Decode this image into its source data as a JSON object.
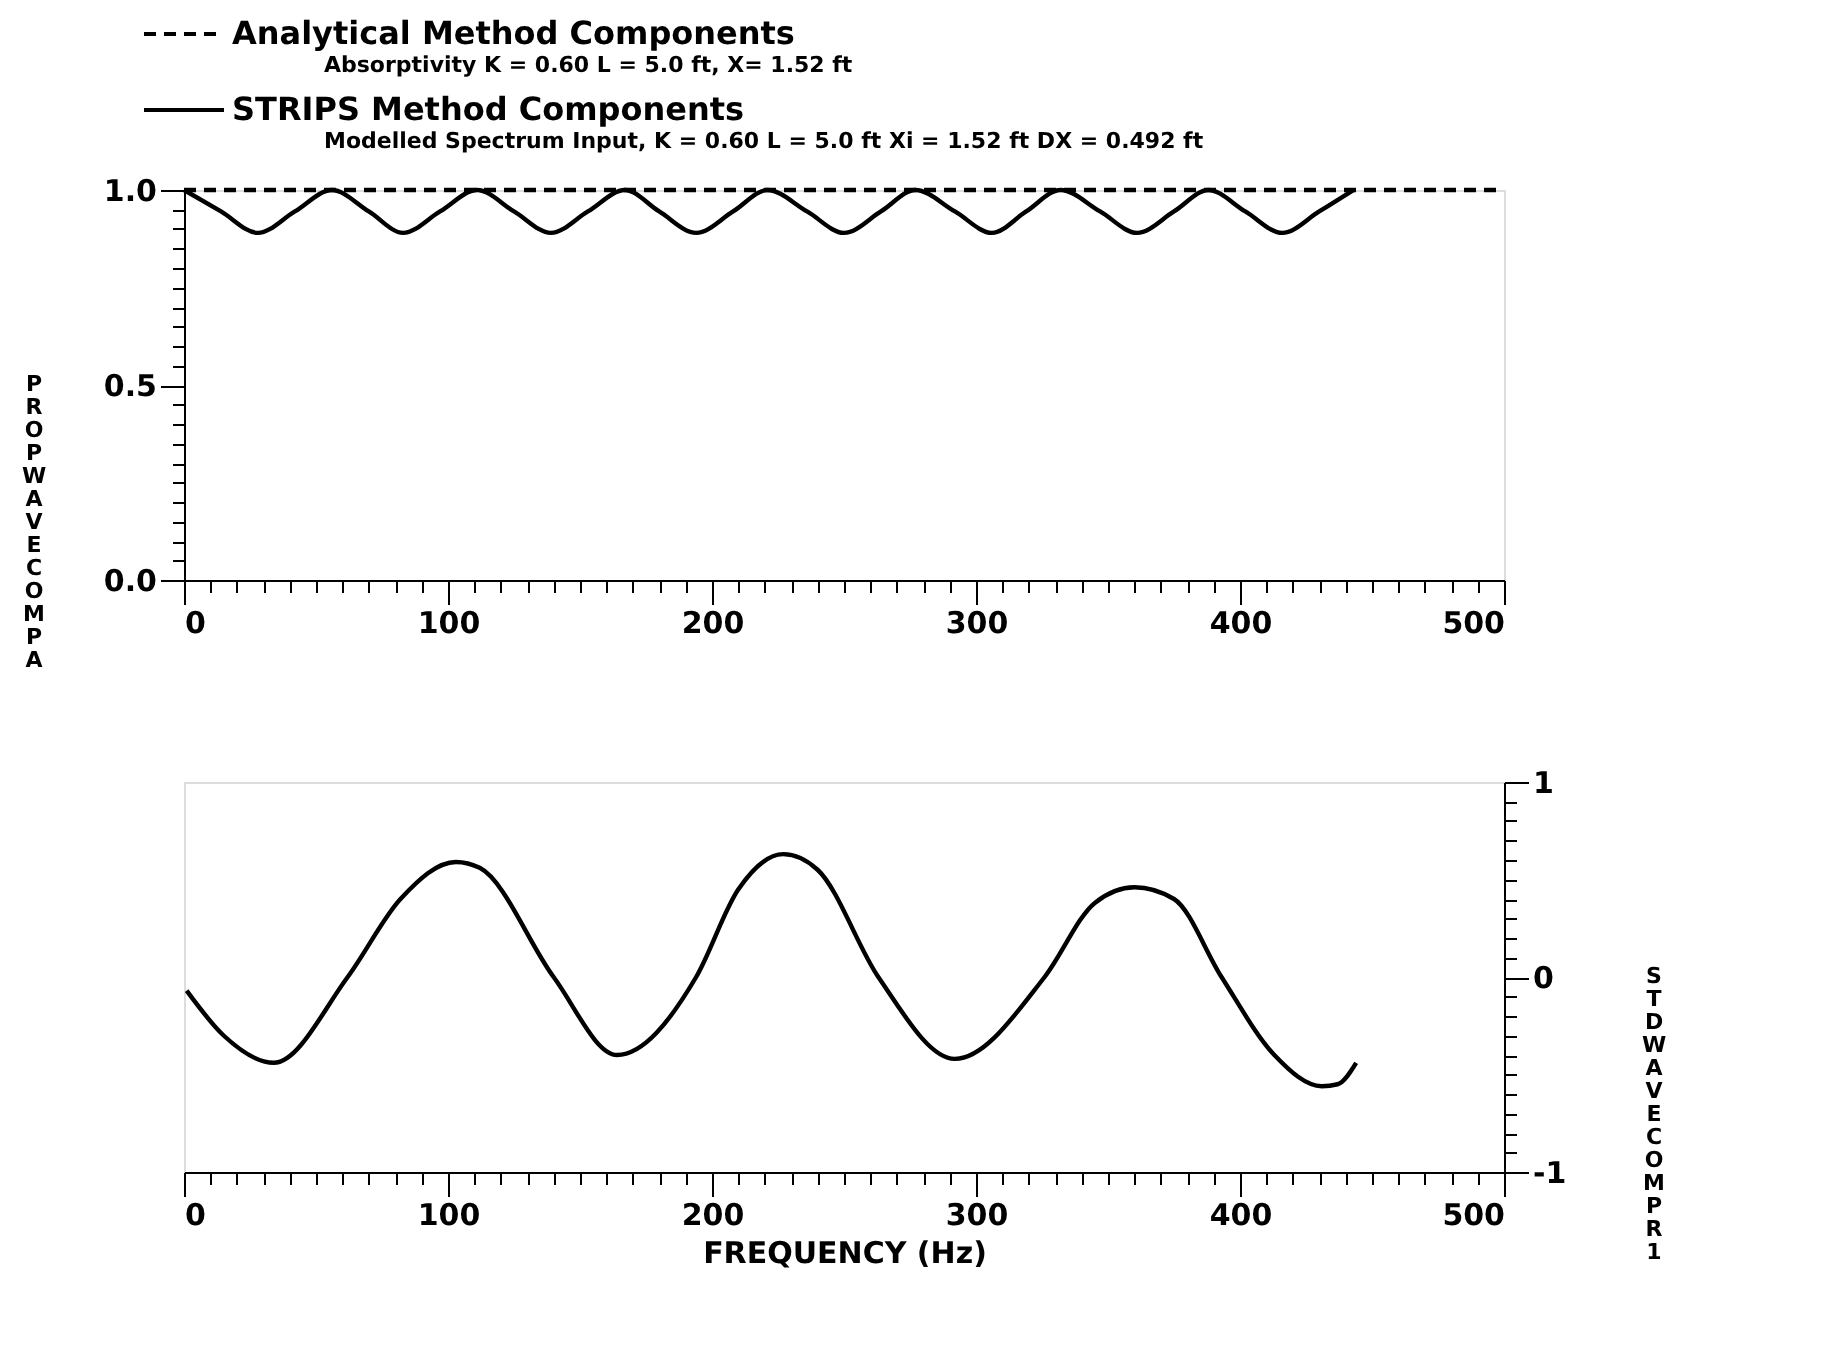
{
  "chart_data": [
    {
      "type": "line",
      "legend": "top",
      "annotations": [
        "Absorptivity  K = 0.60  L = 5.0 ft,  X= 1.52 ft",
        "Modelled Spectrum Input,  K = 0.60  L = 5.0 ft  Xi = 1.52 ft  DX = 0.492 ft"
      ],
      "ylabel": "PROP WAVE COMP A",
      "xlim": [
        0,
        500
      ],
      "ylim": [
        0,
        1
      ],
      "xticks": [
        0,
        {
          "value": 10,
          "label": null
        },
        {
          "value": 20,
          "label": null
        },
        {
          "value": 30,
          "label": null
        },
        {
          "value": 40,
          "label": null
        },
        {
          "value": 50,
          "label": null
        },
        {
          "value": 60,
          "label": null
        },
        {
          "value": 70,
          "label": null
        },
        {
          "value": 80,
          "label": null
        },
        {
          "value": 90,
          "label": null
        },
        100,
        {
          "value": 110,
          "label": null
        },
        {
          "value": 120,
          "label": null
        },
        {
          "value": 130,
          "label": null
        },
        {
          "value": 140,
          "label": null
        },
        {
          "value": 150,
          "label": null
        },
        {
          "value": 160,
          "label": null
        },
        {
          "value": 170,
          "label": null
        },
        {
          "value": 180,
          "label": null
        },
        {
          "value": 190,
          "label": null
        },
        200,
        {
          "value": 210,
          "label": null
        },
        {
          "value": 220,
          "label": null
        },
        {
          "value": 230,
          "label": null
        },
        {
          "value": 240,
          "label": null
        },
        {
          "value": 250,
          "label": null
        },
        {
          "value": 260,
          "label": null
        },
        {
          "value": 270,
          "label": null
        },
        {
          "value": 280,
          "label": null
        },
        {
          "value": 290,
          "label": null
        },
        300,
        {
          "value": 310,
          "label": null
        },
        {
          "value": 320,
          "label": null
        },
        {
          "value": 330,
          "label": null
        },
        {
          "value": 340,
          "label": null
        },
        {
          "value": 350,
          "label": null
        },
        {
          "value": 360,
          "label": null
        },
        {
          "value": 370,
          "label": null
        },
        {
          "value": 380,
          "label": null
        },
        {
          "value": 390,
          "label": null
        },
        400,
        {
          "value": 410,
          "label": null
        },
        {
          "value": 420,
          "label": null
        },
        {
          "value": 430,
          "label": null
        },
        {
          "value": 440,
          "label": null
        },
        {
          "value": 450,
          "label": null
        },
        {
          "value": 460,
          "label": null
        },
        {
          "value": 470,
          "label": null
        },
        {
          "value": 480,
          "label": null
        },
        {
          "value": 490,
          "label": null
        },
        500
      ],
      "yticks": [
        {
          "value": 0,
          "label": "0.0"
        },
        {
          "value": 0.05,
          "label": null
        },
        {
          "value": 0.1,
          "label": null
        },
        {
          "value": 0.15,
          "label": null
        },
        {
          "value": 0.2,
          "label": null
        },
        {
          "value": 0.25,
          "label": null
        },
        {
          "value": 0.3,
          "label": null
        },
        {
          "value": 0.35,
          "label": null
        },
        {
          "value": 0.4,
          "label": null
        },
        {
          "value": 0.45,
          "label": null
        },
        {
          "value": 0.5,
          "label": "0.5"
        },
        {
          "value": 0.55,
          "label": null
        },
        {
          "value": 0.6,
          "label": null
        },
        {
          "value": 0.65,
          "label": null
        },
        {
          "value": 0.7,
          "label": null
        },
        {
          "value": 0.75,
          "label": null
        },
        {
          "value": 0.8,
          "label": null
        },
        {
          "value": 0.85,
          "label": null
        },
        {
          "value": 0.9,
          "label": null
        },
        {
          "value": 0.95,
          "label": null
        },
        {
          "value": 1,
          "label": "1.0"
        }
      ],
      "series": [
        {
          "name": "Analytical Method Components",
          "color": "#000000",
          "line_style": "dashed",
          "x": [
            0,
            500
          ],
          "values": [
            1,
            1
          ]
        },
        {
          "name": "STRIPS Method Components",
          "color": "#000000",
          "line_style": "solid",
          "x": [
            0,
            14,
            28,
            42,
            56,
            70,
            83,
            97,
            111,
            125,
            139,
            153,
            167,
            180,
            194,
            208,
            221,
            236,
            250,
            264,
            277,
            292,
            306,
            319,
            332,
            347,
            361,
            375,
            388,
            402,
            416,
            430,
            443
          ],
          "values": [
            1,
            0.945,
            0.89,
            0.945,
            1,
            0.945,
            0.89,
            0.945,
            1,
            0.945,
            0.89,
            0.945,
            1,
            0.945,
            0.89,
            0.945,
            1,
            0.945,
            0.89,
            0.945,
            1,
            0.945,
            0.89,
            0.945,
            1,
            0.945,
            0.89,
            0.945,
            1,
            0.945,
            0.89,
            0.945,
            1
          ]
        }
      ]
    },
    {
      "type": "line",
      "xlabel": "FREQUENCY (Hz)",
      "y2label": "STD WAVE COMP R1",
      "xlim": [
        0,
        500
      ],
      "y2lim": [
        -1,
        1
      ],
      "xticks": [
        0,
        {
          "value": 10,
          "label": null
        },
        {
          "value": 20,
          "label": null
        },
        {
          "value": 30,
          "label": null
        },
        {
          "value": 40,
          "label": null
        },
        {
          "value": 50,
          "label": null
        },
        {
          "value": 60,
          "label": null
        },
        {
          "value": 70,
          "label": null
        },
        {
          "value": 80,
          "label": null
        },
        {
          "value": 90,
          "label": null
        },
        100,
        {
          "value": 110,
          "label": null
        },
        {
          "value": 120,
          "label": null
        },
        {
          "value": 130,
          "label": null
        },
        {
          "value": 140,
          "label": null
        },
        {
          "value": 150,
          "label": null
        },
        {
          "value": 160,
          "label": null
        },
        {
          "value": 170,
          "label": null
        },
        {
          "value": 180,
          "label": null
        },
        {
          "value": 190,
          "label": null
        },
        200,
        {
          "value": 210,
          "label": null
        },
        {
          "value": 220,
          "label": null
        },
        {
          "value": 230,
          "label": null
        },
        {
          "value": 240,
          "label": null
        },
        {
          "value": 250,
          "label": null
        },
        {
          "value": 260,
          "label": null
        },
        {
          "value": 270,
          "label": null
        },
        {
          "value": 280,
          "label": null
        },
        {
          "value": 290,
          "label": null
        },
        300,
        {
          "value": 310,
          "label": null
        },
        {
          "value": 320,
          "label": null
        },
        {
          "value": 330,
          "label": null
        },
        {
          "value": 340,
          "label": null
        },
        {
          "value": 350,
          "label": null
        },
        {
          "value": 360,
          "label": null
        },
        {
          "value": 370,
          "label": null
        },
        {
          "value": 380,
          "label": null
        },
        {
          "value": 390,
          "label": null
        },
        400,
        {
          "value": 410,
          "label": null
        },
        {
          "value": 420,
          "label": null
        },
        {
          "value": 430,
          "label": null
        },
        {
          "value": 440,
          "label": null
        },
        {
          "value": 450,
          "label": null
        },
        {
          "value": 460,
          "label": null
        },
        {
          "value": 470,
          "label": null
        },
        {
          "value": 480,
          "label": null
        },
        {
          "value": 490,
          "label": null
        },
        500
      ],
      "y2ticks": [
        -1,
        {
          "value": -0.9,
          "label": null
        },
        {
          "value": -0.8,
          "label": null
        },
        {
          "value": -0.7,
          "label": null
        },
        {
          "value": -0.6,
          "label": null
        },
        {
          "value": -0.5,
          "label": null
        },
        {
          "value": -0.4,
          "label": null
        },
        {
          "value": -0.3,
          "label": null
        },
        {
          "value": -0.2,
          "label": null
        },
        {
          "value": -0.1,
          "label": null
        },
        0,
        {
          "value": 0.1,
          "label": null
        },
        {
          "value": 0.2,
          "label": null
        },
        {
          "value": 0.3,
          "label": null
        },
        {
          "value": 0.4,
          "label": null
        },
        {
          "value": 0.5,
          "label": null
        },
        {
          "value": 0.6,
          "label": null
        },
        {
          "value": 0.7,
          "label": null
        },
        {
          "value": 0.8,
          "label": null
        },
        {
          "value": 0.9,
          "label": null
        },
        1
      ],
      "series": [
        {
          "color": "#000000",
          "axis": "y2",
          "x": [
            1,
            15,
            34,
            62,
            82,
            103,
            112,
            140,
            164,
            194,
            210,
            227,
            240,
            263,
            292,
            326,
            345,
            360,
            375,
            393,
            413,
            431,
            437,
            444
          ],
          "values": [
            -0.07,
            -0.3,
            -0.44,
            0,
            0.4,
            0.59,
            0.56,
            0,
            -0.4,
            0,
            0.45,
            0.63,
            0.55,
            0,
            -0.42,
            0,
            0.38,
            0.46,
            0.4,
            0,
            -0.4,
            -0.56,
            -0.55,
            -0.44
          ]
        }
      ]
    }
  ]
}
